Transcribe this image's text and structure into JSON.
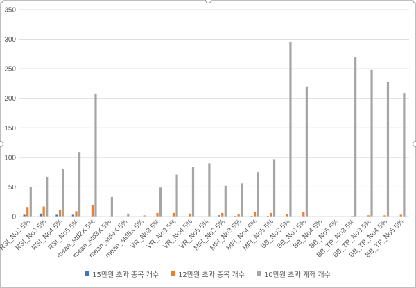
{
  "chart_data": {
    "type": "bar",
    "ylim": [
      0,
      350
    ],
    "yticks": [
      0,
      50,
      100,
      150,
      200,
      250,
      300,
      350
    ],
    "grid": true,
    "legend_position": "bottom",
    "categories": [
      "RSI_No2 5%",
      "RSI_No3 5%",
      "RSI_No4 5%",
      "RSI_No5 5%",
      "mean_std2X 5%",
      "mean_std3X 5%",
      "mean_std4X 5%",
      "mean_std5X 5%",
      "VR_No2 5%",
      "VR_No3 5%",
      "VR_No4 5%",
      "VR_No5 5%",
      "MFI_No2 5%",
      "MFI_No3 5%",
      "MFI_No4 5%",
      "MFI_No5 5%",
      "BB_No2 5%",
      "BB_No3 5%",
      "BB_No4 5%",
      "BB_No5 5%",
      "BB_TP_No2 5%",
      "BB_TP_No3 5%",
      "BB_TP_No4 5%",
      "BB_TP_No5 5%"
    ],
    "series": [
      {
        "name": "15만원 초과 종목 개수",
        "color": "#4472C4",
        "values": [
          3,
          5,
          3,
          3,
          0,
          0,
          0,
          0,
          0,
          0,
          0,
          0,
          2,
          1,
          1,
          1,
          0,
          0,
          0,
          0,
          0,
          0,
          0,
          0
        ]
      },
      {
        "name": "12만원 초과 종목 개수",
        "color": "#ED7D31",
        "values": [
          15,
          17,
          11,
          9,
          19,
          0,
          0,
          0,
          6,
          6,
          5,
          0,
          6,
          4,
          8,
          6,
          4,
          8,
          0,
          0,
          1,
          2,
          2,
          3
        ]
      },
      {
        "name": "10만원 초과 계좌 개수",
        "color": "#A5A5A5",
        "values": [
          50,
          67,
          81,
          109,
          208,
          33,
          5,
          2,
          49,
          71,
          84,
          90,
          52,
          56,
          75,
          97,
          296,
          220,
          0,
          0,
          270,
          248,
          228,
          209
        ]
      }
    ]
  }
}
